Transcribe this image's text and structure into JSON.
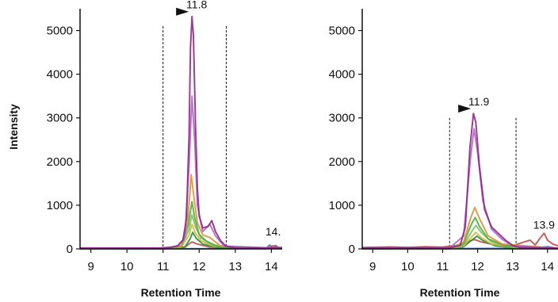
{
  "chart_data": [
    {
      "type": "line",
      "xlabel": "Retention Time",
      "ylabel": "Intensity",
      "xlim": [
        8.7,
        14.3
      ],
      "ylim": [
        0,
        5500
      ],
      "xticks": [
        9,
        10,
        11,
        12,
        13,
        14
      ],
      "yticks": [
        0,
        1000,
        2000,
        3000,
        4000,
        5000
      ],
      "boundaries": [
        11.0,
        12.75
      ],
      "peak_label": {
        "text": "11.8",
        "x": 11.8,
        "y": 5360,
        "color": "#b0468f"
      },
      "side_label": {
        "text": "14.",
        "x": 14.05,
        "y": 200,
        "color": "#c0504d"
      },
      "series": [
        {
          "color": "#8e2a8a",
          "points": [
            [
              8.7,
              20
            ],
            [
              10.9,
              20
            ],
            [
              11.0,
              25
            ],
            [
              11.2,
              35
            ],
            [
              11.4,
              70
            ],
            [
              11.55,
              200
            ],
            [
              11.65,
              700
            ],
            [
              11.72,
              2600
            ],
            [
              11.76,
              4600
            ],
            [
              11.8,
              5320
            ],
            [
              11.84,
              4900
            ],
            [
              11.9,
              2800
            ],
            [
              11.95,
              1400
            ],
            [
              12.0,
              750
            ],
            [
              12.1,
              480
            ],
            [
              12.25,
              520
            ],
            [
              12.35,
              650
            ],
            [
              12.45,
              400
            ],
            [
              12.6,
              180
            ],
            [
              12.75,
              60
            ],
            [
              13.0,
              25
            ],
            [
              14.3,
              20
            ]
          ]
        },
        {
          "color": "#b368c8",
          "points": [
            [
              8.7,
              15
            ],
            [
              11.0,
              20
            ],
            [
              11.4,
              60
            ],
            [
              11.6,
              250
            ],
            [
              11.72,
              1900
            ],
            [
              11.8,
              3500
            ],
            [
              11.88,
              2400
            ],
            [
              11.95,
              1000
            ],
            [
              12.1,
              400
            ],
            [
              12.3,
              560
            ],
            [
              12.45,
              300
            ],
            [
              12.7,
              60
            ],
            [
              14.3,
              15
            ]
          ]
        },
        {
          "color": "#d9943a",
          "points": [
            [
              8.7,
              10
            ],
            [
              11.0,
              12
            ],
            [
              11.5,
              70
            ],
            [
              11.68,
              600
            ],
            [
              11.78,
              1700
            ],
            [
              11.86,
              1150
            ],
            [
              11.95,
              600
            ],
            [
              12.1,
              320
            ],
            [
              12.3,
              260
            ],
            [
              12.6,
              60
            ],
            [
              14.3,
              10
            ]
          ]
        },
        {
          "color": "#4caf3e",
          "points": [
            [
              8.7,
              10
            ],
            [
              11.0,
              10
            ],
            [
              11.5,
              60
            ],
            [
              11.7,
              550
            ],
            [
              11.8,
              1080
            ],
            [
              11.88,
              700
            ],
            [
              12.0,
              330
            ],
            [
              12.2,
              180
            ],
            [
              12.5,
              60
            ],
            [
              14.3,
              10
            ]
          ]
        },
        {
          "color": "#80c060",
          "points": [
            [
              8.7,
              8
            ],
            [
              11.0,
              8
            ],
            [
              11.5,
              50
            ],
            [
              11.72,
              450
            ],
            [
              11.8,
              780
            ],
            [
              11.9,
              500
            ],
            [
              12.05,
              250
            ],
            [
              12.4,
              80
            ],
            [
              14.3,
              8
            ]
          ]
        },
        {
          "color": "#d2ba44",
          "points": [
            [
              8.7,
              8
            ],
            [
              11.0,
              8
            ],
            [
              11.5,
              40
            ],
            [
              11.72,
              320
            ],
            [
              11.8,
              560
            ],
            [
              11.9,
              360
            ],
            [
              12.05,
              190
            ],
            [
              12.4,
              60
            ],
            [
              14.3,
              8
            ]
          ]
        },
        {
          "color": "#2f8f3a",
          "points": [
            [
              8.7,
              6
            ],
            [
              11.0,
              6
            ],
            [
              11.6,
              40
            ],
            [
              11.75,
              230
            ],
            [
              11.82,
              380
            ],
            [
              11.92,
              240
            ],
            [
              12.1,
              110
            ],
            [
              12.5,
              30
            ],
            [
              14.3,
              6
            ]
          ]
        },
        {
          "color": "#c0504d",
          "points": [
            [
              8.7,
              10
            ],
            [
              11.0,
              10
            ],
            [
              11.6,
              40
            ],
            [
              11.8,
              160
            ],
            [
              11.95,
              110
            ],
            [
              12.3,
              40
            ],
            [
              13.9,
              20
            ],
            [
              14.05,
              70
            ],
            [
              14.15,
              40
            ],
            [
              14.3,
              25
            ]
          ]
        },
        {
          "color": "#4a7bd0",
          "points": [
            [
              8.7,
              5
            ],
            [
              13.85,
              5
            ],
            [
              13.95,
              90
            ],
            [
              14.05,
              30
            ],
            [
              14.12,
              80
            ],
            [
              14.2,
              20
            ],
            [
              14.3,
              40
            ]
          ]
        }
      ]
    },
    {
      "type": "line",
      "xlabel": "Retention Time",
      "ylabel": "",
      "xlim": [
        8.7,
        14.3
      ],
      "ylim": [
        0,
        5500
      ],
      "xticks": [
        9,
        10,
        11,
        12,
        13,
        14
      ],
      "yticks": [
        0,
        1000,
        2000,
        3000,
        4000,
        5000
      ],
      "boundaries": [
        11.2,
        13.1
      ],
      "peak_label": {
        "text": "11.9",
        "x": 11.9,
        "y": 3140,
        "color": "#b0468f"
      },
      "side_label": {
        "text": "13.9",
        "x": 13.9,
        "y": 350,
        "color": "#c0504d"
      },
      "series": [
        {
          "color": "#8e2a8a",
          "points": [
            [
              8.7,
              20
            ],
            [
              11.2,
              25
            ],
            [
              11.5,
              80
            ],
            [
              11.65,
              500
            ],
            [
              11.78,
              2300
            ],
            [
              11.88,
              3100
            ],
            [
              11.95,
              2900
            ],
            [
              12.05,
              1900
            ],
            [
              12.2,
              900
            ],
            [
              12.4,
              500
            ],
            [
              12.6,
              350
            ],
            [
              12.8,
              200
            ],
            [
              13.0,
              80
            ],
            [
              13.2,
              30
            ],
            [
              14.3,
              20
            ]
          ]
        },
        {
          "color": "#b368c8",
          "points": [
            [
              8.7,
              15
            ],
            [
              11.2,
              20
            ],
            [
              11.6,
              300
            ],
            [
              11.8,
              2100
            ],
            [
              11.9,
              2750
            ],
            [
              12.0,
              2200
            ],
            [
              12.15,
              1100
            ],
            [
              12.4,
              450
            ],
            [
              12.7,
              220
            ],
            [
              13.0,
              70
            ],
            [
              14.3,
              15
            ]
          ]
        },
        {
          "color": "#d9943a",
          "points": [
            [
              8.7,
              10
            ],
            [
              11.2,
              12
            ],
            [
              11.6,
              150
            ],
            [
              11.8,
              700
            ],
            [
              11.92,
              950
            ],
            [
              12.05,
              700
            ],
            [
              12.3,
              300
            ],
            [
              12.7,
              110
            ],
            [
              14.3,
              10
            ]
          ]
        },
        {
          "color": "#4caf3e",
          "points": [
            [
              8.7,
              10
            ],
            [
              11.2,
              10
            ],
            [
              11.6,
              120
            ],
            [
              11.82,
              560
            ],
            [
              11.93,
              720
            ],
            [
              12.05,
              520
            ],
            [
              12.3,
              230
            ],
            [
              12.8,
              70
            ],
            [
              14.3,
              10
            ]
          ]
        },
        {
          "color": "#80c060",
          "points": [
            [
              8.7,
              8
            ],
            [
              11.2,
              8
            ],
            [
              11.6,
              90
            ],
            [
              11.85,
              420
            ],
            [
              11.95,
              540
            ],
            [
              12.1,
              380
            ],
            [
              12.4,
              160
            ],
            [
              12.9,
              50
            ],
            [
              14.3,
              8
            ]
          ]
        },
        {
          "color": "#d2ba44",
          "points": [
            [
              8.7,
              8
            ],
            [
              11.2,
              8
            ],
            [
              11.6,
              70
            ],
            [
              11.85,
              290
            ],
            [
              11.95,
              380
            ],
            [
              12.1,
              260
            ],
            [
              12.4,
              110
            ],
            [
              13.0,
              40
            ],
            [
              14.3,
              8
            ]
          ]
        },
        {
          "color": "#2f8f3a",
          "points": [
            [
              8.7,
              6
            ],
            [
              11.2,
              6
            ],
            [
              11.6,
              50
            ],
            [
              11.88,
              230
            ],
            [
              11.98,
              290
            ],
            [
              12.15,
              190
            ],
            [
              12.5,
              70
            ],
            [
              13.0,
              25
            ],
            [
              14.3,
              6
            ]
          ]
        },
        {
          "color": "#c0504d",
          "points": [
            [
              8.7,
              30
            ],
            [
              9.5,
              45
            ],
            [
              10.0,
              35
            ],
            [
              10.5,
              50
            ],
            [
              11.0,
              40
            ],
            [
              11.5,
              90
            ],
            [
              11.9,
              220
            ],
            [
              12.1,
              160
            ],
            [
              12.5,
              90
            ],
            [
              13.0,
              70
            ],
            [
              13.3,
              150
            ],
            [
              13.5,
              200
            ],
            [
              13.65,
              90
            ],
            [
              13.8,
              260
            ],
            [
              13.9,
              360
            ],
            [
              14.0,
              200
            ],
            [
              14.15,
              110
            ],
            [
              14.3,
              70
            ]
          ]
        },
        {
          "color": "#4a7bd0",
          "points": [
            [
              8.7,
              5
            ],
            [
              13.2,
              10
            ],
            [
              13.4,
              60
            ],
            [
              13.6,
              20
            ],
            [
              14.0,
              50
            ],
            [
              14.3,
              15
            ]
          ]
        }
      ]
    }
  ]
}
